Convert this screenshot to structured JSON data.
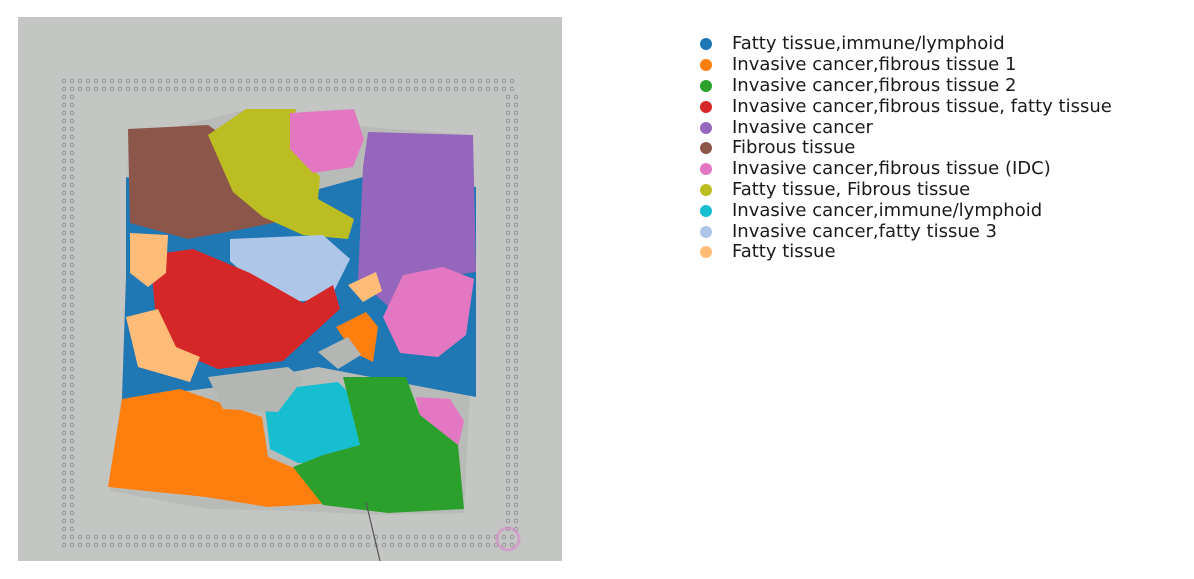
{
  "legend": {
    "entries": [
      {
        "label": "Fatty tissue,immune/lymphoid",
        "color": "#1f77b4"
      },
      {
        "label": "Invasive cancer,fibrous tissue 1",
        "color": "#ff7f0e"
      },
      {
        "label": "Invasive cancer,fibrous tissue 2",
        "color": "#2ca02c"
      },
      {
        "label": "Invasive cancer,fibrous tissue, fatty tissue",
        "color": "#d62728"
      },
      {
        "label": "Invasive cancer",
        "color": "#9467bd"
      },
      {
        "label": "Fibrous tissue",
        "color": "#8c564b"
      },
      {
        "label": "Invasive cancer,fibrous tissue (IDC)",
        "color": "#e377c2"
      },
      {
        "label": "Fatty tissue, Fibrous tissue",
        "color": "#bcbd22"
      },
      {
        "label": "Invasive cancer,immune/lymphoid",
        "color": "#17becf"
      },
      {
        "label": "Invasive cancer,fatty tissue 3",
        "color": "#aec7e8"
      },
      {
        "label": "Fatty tissue",
        "color": "#ffbb78"
      }
    ]
  },
  "image": {
    "background_color": "#c4c6c3",
    "fiducial_color": "#8a8d92"
  }
}
